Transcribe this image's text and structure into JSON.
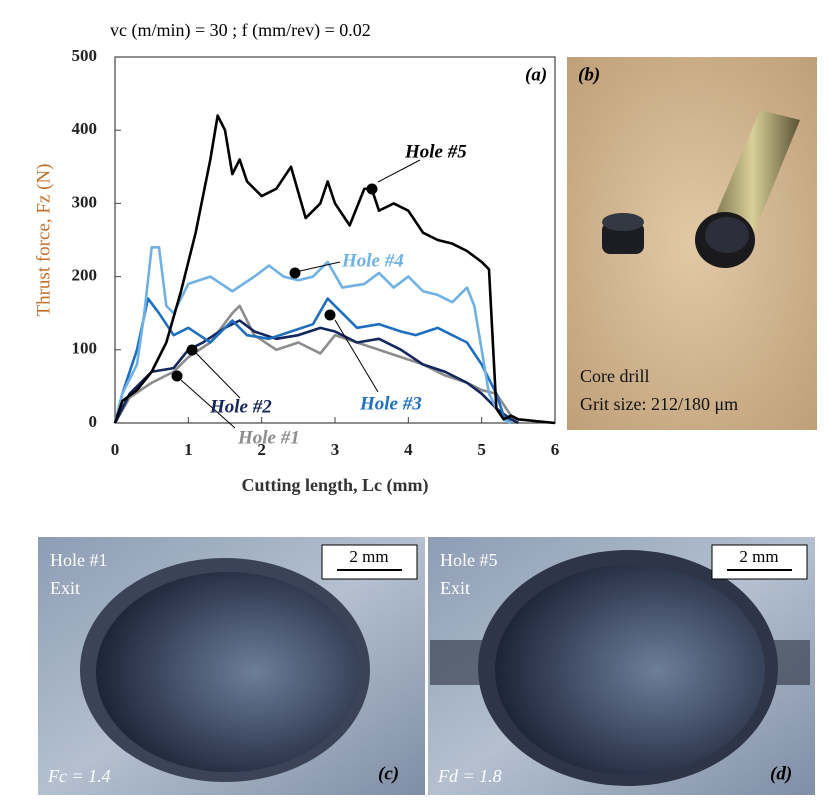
{
  "chart_data": {
    "type": "line",
    "subtitle": "vc (m/min) = 30 ; f (mm/rev) = 0.02",
    "panel_label": "(a)",
    "x_label": "Cutting length, Lc (mm)",
    "y_label": "Thrust force, Fz (N)",
    "xlim": [
      0,
      6
    ],
    "xticks": [
      0,
      1,
      2,
      3,
      4,
      5,
      6
    ],
    "ylim": [
      0,
      500
    ],
    "yticks": [
      0,
      100,
      200,
      300,
      400,
      500
    ],
    "series": [
      {
        "name": "Hole #1",
        "color": "#8c8c8c",
        "x": [
          0,
          0.2,
          0.5,
          0.8,
          1.0,
          1.3,
          1.6,
          1.7,
          1.9,
          2.2,
          2.5,
          2.8,
          3.0,
          3.3,
          3.6,
          3.9,
          4.2,
          4.5,
          4.8,
          5.0,
          5.2,
          5.4,
          5.5
        ],
        "values": [
          0,
          35,
          55,
          70,
          90,
          110,
          150,
          160,
          120,
          100,
          110,
          95,
          120,
          110,
          100,
          90,
          80,
          65,
          55,
          45,
          40,
          10,
          0
        ]
      },
      {
        "name": "Hole #2",
        "color": "#14265e",
        "x": [
          0,
          0.2,
          0.5,
          0.8,
          1.0,
          1.2,
          1.5,
          1.7,
          1.9,
          2.2,
          2.5,
          2.8,
          3.0,
          3.3,
          3.6,
          3.9,
          4.2,
          4.5,
          4.8,
          5.0,
          5.2,
          5.4,
          5.5
        ],
        "values": [
          0,
          40,
          70,
          75,
          100,
          110,
          130,
          140,
          125,
          115,
          120,
          130,
          125,
          110,
          115,
          100,
          80,
          70,
          55,
          40,
          20,
          5,
          0
        ]
      },
      {
        "name": "Hole #3",
        "color": "#1f6fc0",
        "x": [
          0,
          0.1,
          0.3,
          0.45,
          0.6,
          0.8,
          1.0,
          1.3,
          1.6,
          1.8,
          2.1,
          2.4,
          2.7,
          2.9,
          3.1,
          3.3,
          3.6,
          3.9,
          4.1,
          4.4,
          4.6,
          4.8,
          5.0,
          5.2,
          5.3,
          5.4
        ],
        "values": [
          0,
          40,
          100,
          170,
          150,
          120,
          130,
          110,
          140,
          120,
          115,
          125,
          135,
          170,
          150,
          130,
          135,
          125,
          120,
          130,
          120,
          110,
          80,
          40,
          10,
          0
        ]
      },
      {
        "name": "Hole #4",
        "color": "#6fb1e4",
        "x": [
          0,
          0.1,
          0.3,
          0.4,
          0.5,
          0.6,
          0.7,
          0.8,
          1.0,
          1.3,
          1.6,
          1.9,
          2.1,
          2.3,
          2.5,
          2.7,
          2.9,
          3.1,
          3.4,
          3.6,
          3.8,
          4.0,
          4.2,
          4.4,
          4.6,
          4.8,
          4.9,
          5.0,
          5.1,
          5.2,
          5.3,
          5.4
        ],
        "values": [
          0,
          40,
          80,
          150,
          240,
          240,
          160,
          150,
          190,
          200,
          180,
          200,
          215,
          200,
          195,
          200,
          220,
          185,
          190,
          205,
          185,
          200,
          180,
          175,
          165,
          185,
          160,
          100,
          40,
          20,
          5,
          0
        ]
      },
      {
        "name": "Hole #5",
        "color": "#000000",
        "x": [
          0,
          0.1,
          0.3,
          0.5,
          0.7,
          0.9,
          1.1,
          1.3,
          1.4,
          1.5,
          1.6,
          1.7,
          1.8,
          2.0,
          2.2,
          2.4,
          2.6,
          2.8,
          2.9,
          3.0,
          3.2,
          3.4,
          3.5,
          3.6,
          3.8,
          4.0,
          4.2,
          4.4,
          4.6,
          4.8,
          5.0,
          5.1,
          5.2,
          5.3,
          5.4,
          5.5,
          5.7,
          6.0
        ],
        "values": [
          0,
          30,
          45,
          70,
          110,
          180,
          260,
          360,
          420,
          400,
          340,
          360,
          330,
          310,
          320,
          350,
          280,
          300,
          330,
          300,
          270,
          320,
          320,
          290,
          300,
          290,
          260,
          250,
          245,
          235,
          220,
          210,
          20,
          5,
          10,
          5,
          3,
          0
        ]
      }
    ]
  },
  "photos": {
    "b": {
      "label": "(b)",
      "caption_1": "Core drill",
      "caption_2": "Grit size: 212/180 μm"
    },
    "c": {
      "label": "(c)",
      "hole": "Hole #1",
      "side": "Exit",
      "scale": "2 mm",
      "factor": "Fc = 1.4"
    },
    "d": {
      "label": "(d)",
      "hole": "Hole #5",
      "side": "Exit",
      "scale": "2 mm",
      "factor": "Fd = 1.8"
    }
  }
}
